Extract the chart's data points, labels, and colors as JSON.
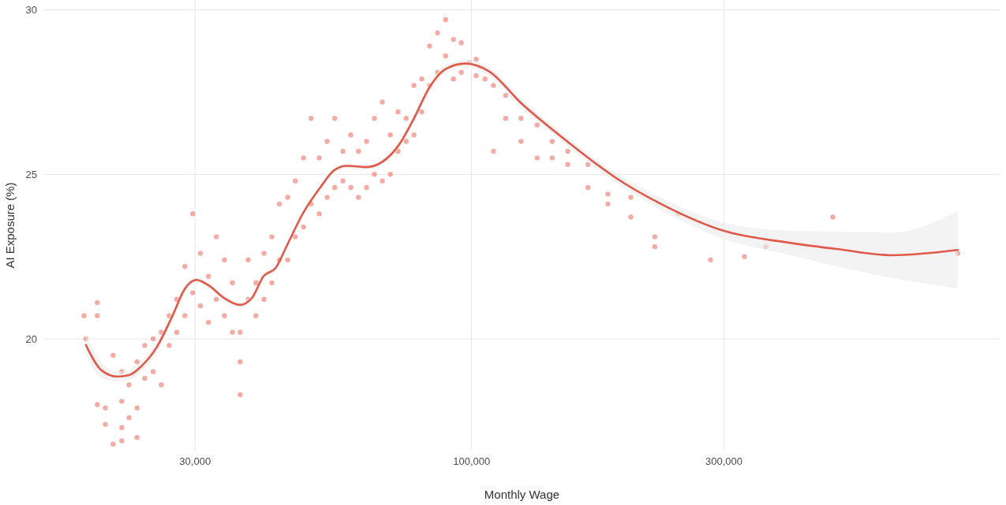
{
  "chart_data": {
    "type": "scatter",
    "xlabel": "Monthly Wage",
    "ylabel": "AI Exposure (%)",
    "log": "x",
    "grid": true,
    "xlim": [
      15500,
      1000000
    ],
    "xticks": [
      {
        "value": 30000,
        "label": "30,000"
      },
      {
        "value": 100000,
        "label": "100,000"
      },
      {
        "value": 300000,
        "label": "300,000"
      }
    ],
    "ylim": [
      16.6,
      30.3
    ],
    "yticks": [
      20,
      25,
      30
    ],
    "series": [
      {
        "marker": "circle",
        "color": "#e8685a",
        "x": [
          18500,
          18650,
          19600,
          19600,
          19600,
          20300,
          20300,
          21000,
          21000,
          21800,
          21800,
          21800,
          21800,
          22500,
          22500,
          23300,
          23300,
          23300,
          24100,
          24100,
          25000,
          25000,
          25900,
          25900,
          26800,
          26800,
          27700,
          27700,
          28700,
          28700,
          29700,
          29700,
          30700,
          30700,
          31800,
          31800,
          32900,
          32900,
          34100,
          34100,
          35300,
          35300,
          36500,
          36500,
          36500,
          37800,
          37800,
          39100,
          39100,
          40500,
          40500,
          41900,
          41900,
          43300,
          43300,
          44900,
          44900,
          46400,
          46400,
          48100,
          48100,
          49700,
          49700,
          51500,
          51500,
          53300,
          53300,
          55100,
          55100,
          57100,
          57100,
          59100,
          59100,
          61100,
          61100,
          63300,
          63300,
          65500,
          65500,
          67800,
          67800,
          70200,
          70200,
          72600,
          72600,
          75200,
          75200,
          77800,
          77800,
          80500,
          80500,
          83300,
          83300,
          86200,
          86200,
          89300,
          89300,
          92400,
          92400,
          95600,
          95600,
          99000,
          102000,
          102000,
          106000,
          110000,
          110000,
          116000,
          116000,
          124000,
          124000,
          133000,
          133000,
          142000,
          142000,
          152000,
          152000,
          166000,
          166000,
          181000,
          181000,
          200000,
          200000,
          222000,
          222000,
          246000,
          283000,
          328000,
          360000,
          482000,
          830000
        ],
        "values": [
          20.7,
          20.0,
          21.1,
          20.7,
          18.0,
          17.9,
          17.4,
          19.5,
          16.8,
          19.0,
          18.1,
          17.3,
          16.9,
          18.6,
          17.6,
          19.3,
          17.9,
          17.0,
          18.8,
          19.8,
          19.0,
          20.0,
          18.6,
          20.2,
          20.7,
          19.8,
          21.2,
          20.2,
          22.2,
          20.7,
          23.8,
          21.4,
          22.6,
          21.0,
          21.9,
          20.5,
          23.1,
          21.2,
          22.4,
          20.7,
          21.7,
          20.2,
          19.3,
          18.3,
          20.2,
          21.2,
          22.4,
          21.7,
          20.7,
          22.6,
          21.2,
          23.1,
          21.7,
          24.1,
          22.4,
          24.3,
          22.4,
          24.8,
          23.1,
          25.5,
          23.4,
          26.7,
          24.1,
          25.5,
          23.8,
          26.0,
          24.3,
          26.7,
          24.6,
          25.7,
          24.8,
          26.2,
          24.6,
          25.7,
          24.3,
          26.0,
          24.6,
          26.7,
          25.0,
          27.2,
          24.8,
          26.2,
          25.0,
          26.9,
          25.7,
          26.7,
          26.0,
          27.7,
          26.2,
          27.9,
          26.9,
          28.9,
          27.7,
          29.3,
          28.1,
          29.7,
          28.6,
          29.1,
          27.9,
          29.0,
          28.1,
          28.4,
          28.5,
          28.0,
          27.9,
          27.7,
          25.7,
          27.4,
          26.7,
          26.7,
          26.0,
          26.5,
          25.5,
          26.0,
          25.5,
          25.7,
          25.3,
          25.3,
          24.6,
          24.4,
          24.1,
          24.3,
          23.7,
          23.1,
          22.8,
          23.8,
          22.4,
          22.5,
          22.8,
          23.7,
          22.6
        ]
      },
      {
        "type": "line",
        "color": "#e05a4a",
        "x": [
          18650,
          19970,
          21400,
          22530,
          23720,
          25420,
          27230,
          28670,
          30180,
          31780,
          34050,
          36480,
          38420,
          40450,
          42590,
          44850,
          48050,
          51470,
          55140,
          58060,
          63280,
          67790,
          72610,
          77800,
          83340,
          89280,
          97280,
          107900,
          123800,
          152200,
          187100,
          230000,
          300000,
          399000,
          490500,
          624000,
          830000
        ],
        "values": [
          19.81,
          19.04,
          18.85,
          18.9,
          19.16,
          19.76,
          20.72,
          21.51,
          21.79,
          21.63,
          21.24,
          21.03,
          21.24,
          21.91,
          22.15,
          22.87,
          23.83,
          24.55,
          25.14,
          25.26,
          25.22,
          25.38,
          25.86,
          26.7,
          27.66,
          28.2,
          28.37,
          28.13,
          27.18,
          25.98,
          24.9,
          24.07,
          23.28,
          22.92,
          22.73,
          22.54,
          22.7
        ],
        "lower": [
          19.5,
          18.8,
          18.7,
          18.75,
          19.0,
          19.6,
          20.6,
          21.4,
          21.7,
          21.55,
          21.15,
          20.95,
          21.15,
          21.83,
          22.07,
          22.8,
          23.76,
          24.48,
          25.07,
          25.19,
          25.15,
          25.3,
          25.77,
          26.6,
          27.55,
          28.08,
          28.25,
          28.0,
          27.05,
          25.85,
          24.75,
          23.88,
          23.03,
          22.55,
          22.2,
          21.85,
          21.53
        ],
        "upper": [
          20.12,
          19.28,
          19.0,
          19.05,
          19.32,
          19.92,
          20.84,
          21.62,
          21.88,
          21.71,
          21.33,
          21.11,
          21.33,
          21.99,
          22.23,
          22.94,
          23.9,
          24.62,
          25.21,
          25.33,
          25.29,
          25.46,
          25.95,
          26.8,
          27.77,
          28.32,
          28.49,
          28.26,
          27.31,
          26.11,
          25.05,
          24.26,
          23.53,
          23.29,
          23.26,
          23.23,
          23.88
        ]
      }
    ]
  }
}
